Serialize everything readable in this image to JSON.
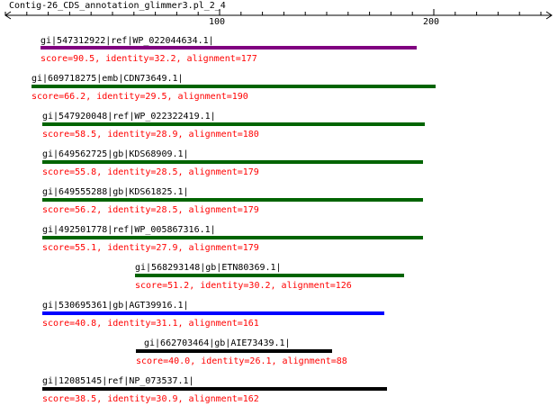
{
  "title": "Contig-26_CDS_annotation_glimmer3.pl_2_4",
  "ruler": {
    "ticks": [
      "100",
      "200"
    ]
  },
  "hits": [
    {
      "label": "gi|547312922|ref|WP_022044634.1|",
      "score": "score=90.5, identity=32.2, alignment=177",
      "color": "#800080"
    },
    {
      "label": "gi|609718275|emb|CDN73649.1|",
      "score": "score=66.2, identity=29.5, alignment=190",
      "color": "#006400"
    },
    {
      "label": "gi|547920048|ref|WP_022322419.1|",
      "score": "score=58.5, identity=28.9, alignment=180",
      "color": "#006400"
    },
    {
      "label": "gi|649562725|gb|KDS68909.1|",
      "score": "score=55.8, identity=28.5, alignment=179",
      "color": "#006400"
    },
    {
      "label": "gi|649555288|gb|KDS61825.1|",
      "score": "score=56.2, identity=28.5, alignment=179",
      "color": "#006400"
    },
    {
      "label": "gi|492501778|ref|WP_005867316.1|",
      "score": "score=55.1, identity=27.9, alignment=179",
      "color": "#006400"
    },
    {
      "label": "gi|568293148|gb|ETN80369.1|",
      "score": "score=51.2, identity=30.2, alignment=126",
      "color": "#006400"
    },
    {
      "label": "gi|530695361|gb|AGT39916.1|",
      "score": "score=40.8, identity=31.1, alignment=161",
      "color": "#0000ff"
    },
    {
      "label": "gi|662703464|gb|AIE73439.1|",
      "score": "score=40.0, identity=26.1, alignment=88",
      "color": "#000000"
    },
    {
      "label": "gi|12085145|ref|NP_073537.1|",
      "score": "score=38.5, identity=30.9, alignment=162",
      "color": "#000000"
    }
  ]
}
